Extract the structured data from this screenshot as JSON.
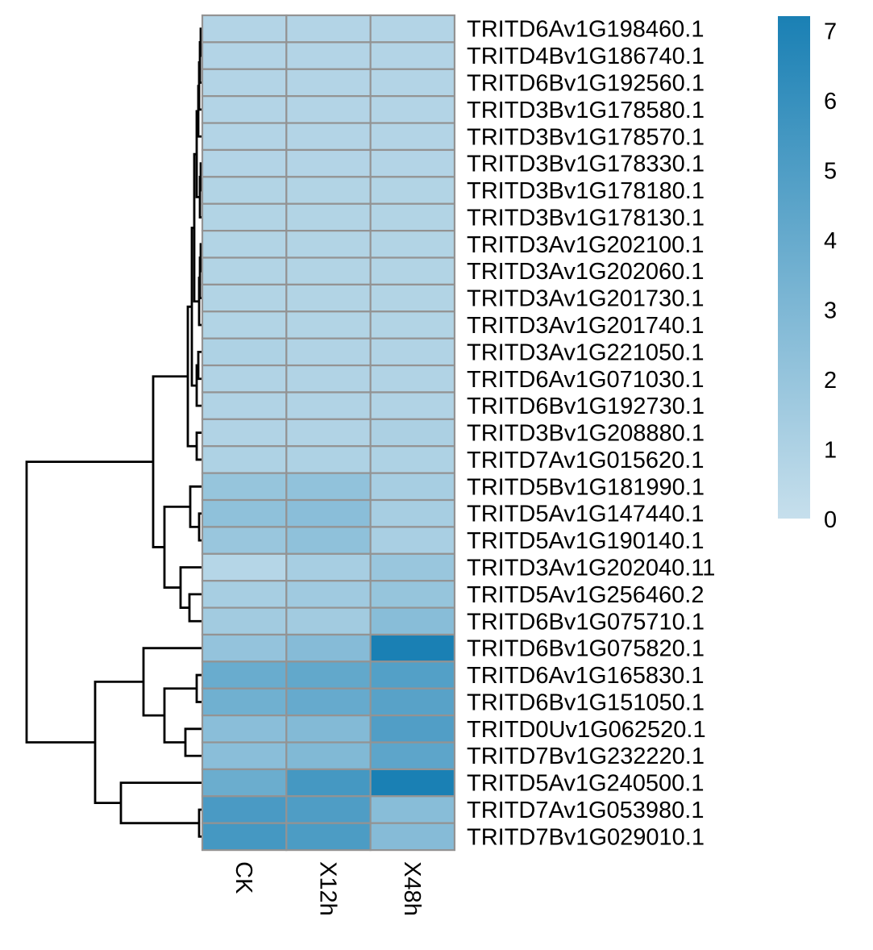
{
  "chart_data": {
    "type": "heatmap",
    "columns": [
      "CK",
      "X12h",
      "X48h"
    ],
    "rows": [
      "TRITD6Av1G198460.1",
      "TRITD4Bv1G186740.1",
      "TRITD6Bv1G192560.1",
      "TRITD3Bv1G178580.1",
      "TRITD3Bv1G178570.1",
      "TRITD3Bv1G178330.1",
      "TRITD3Bv1G178180.1",
      "TRITD3Bv1G178130.1",
      "TRITD3Av1G202100.1",
      "TRITD3Av1G202060.1",
      "TRITD3Av1G201730.1",
      "TRITD3Av1G201740.1",
      "TRITD3Av1G221050.1",
      "TRITD6Av1G071030.1",
      "TRITD6Bv1G192730.1",
      "TRITD3Bv1G208880.1",
      "TRITD7Av1G015620.1",
      "TRITD5Bv1G181990.1",
      "TRITD5Av1G147440.1",
      "TRITD5Av1G190140.1",
      "TRITD3Av1G202040.11",
      "TRITD5Av1G256460.2",
      "TRITD6Bv1G075710.1",
      "TRITD6Bv1G075820.1",
      "TRITD6Av1G165830.1",
      "TRITD6Bv1G151050.1",
      "TRITD0Uv1G062520.1",
      "TRITD7Bv1G232220.1",
      "TRITD5Av1G240500.1",
      "TRITD7Av1G053980.1",
      "TRITD7Bv1G029010.1"
    ],
    "values": [
      [
        0.8,
        0.8,
        0.8
      ],
      [
        0.8,
        0.8,
        0.8
      ],
      [
        0.8,
        0.8,
        0.8
      ],
      [
        0.8,
        0.8,
        0.8
      ],
      [
        0.8,
        0.8,
        0.8
      ],
      [
        0.8,
        0.8,
        0.8
      ],
      [
        0.85,
        0.85,
        0.85
      ],
      [
        0.85,
        0.85,
        0.85
      ],
      [
        0.85,
        0.85,
        0.85
      ],
      [
        0.85,
        0.85,
        0.85
      ],
      [
        0.85,
        0.85,
        0.85
      ],
      [
        0.85,
        0.85,
        0.85
      ],
      [
        1.0,
        0.9,
        0.9
      ],
      [
        0.9,
        0.9,
        0.9
      ],
      [
        0.9,
        0.9,
        0.9
      ],
      [
        0.9,
        0.9,
        1.1
      ],
      [
        1.0,
        1.0,
        1.0
      ],
      [
        2.0,
        2.2,
        1.3
      ],
      [
        2.3,
        2.5,
        1.3
      ],
      [
        1.9,
        2.3,
        1.2
      ],
      [
        0.7,
        1.3,
        1.9
      ],
      [
        1.3,
        1.6,
        2.0
      ],
      [
        1.5,
        1.5,
        2.6
      ],
      [
        2.1,
        2.7,
        7.2
      ],
      [
        3.9,
        4.2,
        4.8
      ],
      [
        3.6,
        4.0,
        4.6
      ],
      [
        2.5,
        2.8,
        4.9
      ],
      [
        2.5,
        2.9,
        4.4
      ],
      [
        3.8,
        5.4,
        7.2
      ],
      [
        5.2,
        5.0,
        2.6
      ],
      [
        5.4,
        5.1,
        2.7
      ]
    ],
    "legend": {
      "ticks": [
        "0",
        "1",
        "2",
        "3",
        "4",
        "5",
        "6",
        "7"
      ],
      "min": 0,
      "max": 7.2,
      "low_color": "#c6dfec",
      "high_color": "#1a80b4"
    },
    "row_dendrogram": true
  }
}
